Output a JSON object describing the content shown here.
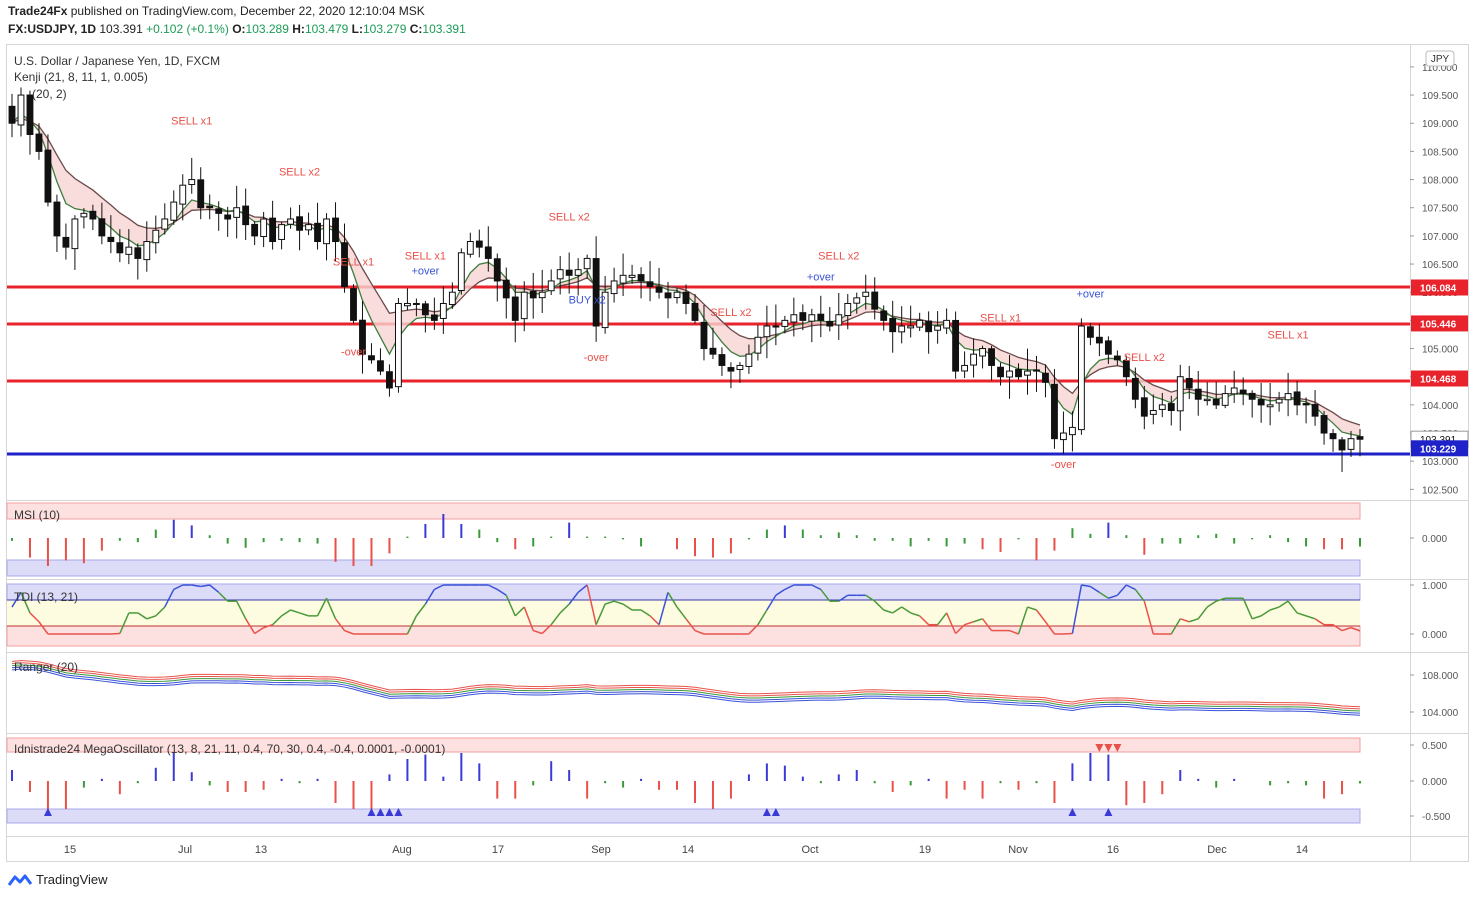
{
  "header": {
    "publisher": "Trade24Fx",
    "published_text": "published on TradingView.com, December 22, 2020 12:10:04 MSK",
    "symbol": "FX:USDJPY, 1D",
    "last": "103.391",
    "change": "+0.102 (+0.1%)",
    "o_label": "O:",
    "o": "103.289",
    "h_label": "H:",
    "h": "103.479",
    "l_label": "L:",
    "l": "103.279",
    "c_label": "C:",
    "c": "103.391"
  },
  "main_legend": {
    "name": "U.S. Dollar / Japanese Yen, 1D, FXCM",
    "kenji": "Kenji (21, 8, 11, 1, 0.005)",
    "bb": "(20, 2)"
  },
  "currency_badge": "JPY",
  "indicators": {
    "msi": "MSI (10)",
    "tdi": "TDI (13, 21)",
    "ranger": "Ranger (20)",
    "mega": "Idnistrade24 MegaOscillator (13, 8, 21, 11, 0.4, 70, 30, 0.4, -0.4, 0.0001, -0.0001)"
  },
  "price_axis": [
    "110.000",
    "109.500",
    "109.000",
    "108.500",
    "108.000",
    "107.500",
    "107.000",
    "106.500",
    "106.000",
    "105.500",
    "105.000",
    "104.500",
    "104.000",
    "103.500",
    "103.000",
    "102.500"
  ],
  "level_tags": [
    "106.084",
    "105.446",
    "104.468",
    "103.391",
    "103.229"
  ],
  "msi_axis": [
    "0.000"
  ],
  "tdi_axis": [
    "1.000",
    "0.000"
  ],
  "ranger_axis": [
    "108.000",
    "104.000"
  ],
  "mega_axis": [
    "0.500",
    "0.000",
    "-0.500"
  ],
  "x_axis": [
    "15",
    "Jul",
    "13",
    "Aug",
    "17",
    "Sep",
    "14",
    "Oct",
    "19",
    "Nov",
    "16",
    "Dec",
    "14"
  ],
  "signals": {
    "sell_x1": "SELL x1",
    "sell_x2": "SELL x2",
    "buy_x2": "BUY x2",
    "over_minus": "-over",
    "over_plus": "+over"
  },
  "footer": {
    "brand": "TradingView"
  },
  "colors": {
    "level_red": "#e8232b",
    "level_blue": "#1f22c8",
    "signal_red": "#e8504a",
    "signal_blue": "#3b52d6",
    "ohlc_green": "#1a9c55",
    "ranger_red": "#e8534a",
    "ranger_blue": "#3a52d8",
    "ranger_green": "#3a9a3a"
  },
  "chart_data": {
    "type": "candlestick",
    "symbol": "USDJPY",
    "timeframe": "1D",
    "ylim": [
      102.4,
      110.3
    ],
    "horizontal_levels": [
      {
        "value": 106.084,
        "color": "red"
      },
      {
        "value": 105.446,
        "color": "red"
      },
      {
        "value": 104.468,
        "color": "red"
      },
      {
        "value": 103.229,
        "color": "blue"
      }
    ],
    "last_price": 103.391,
    "closes": [
      109.0,
      109.5,
      108.8,
      108.5,
      107.6,
      107.0,
      106.8,
      107.3,
      107.4,
      107.3,
      107.0,
      106.9,
      106.7,
      106.8,
      106.6,
      106.9,
      107.1,
      107.3,
      107.6,
      107.9,
      108.0,
      107.5,
      107.5,
      107.4,
      107.3,
      107.5,
      107.2,
      107.0,
      107.3,
      106.9,
      107.2,
      107.3,
      107.1,
      107.2,
      106.9,
      107.3,
      106.9,
      106.1,
      105.5,
      104.9,
      104.8,
      104.6,
      104.3,
      105.8,
      105.8,
      105.8,
      105.6,
      105.5,
      105.8,
      106.0,
      106.7,
      106.9,
      106.8,
      106.6,
      106.2,
      105.9,
      105.5,
      106.0,
      105.9,
      106.0,
      106.2,
      106.4,
      106.3,
      106.4,
      106.6,
      105.4,
      106.0,
      106.2,
      106.3,
      106.3,
      106.2,
      106.1,
      106.0,
      105.9,
      106.0,
      105.8,
      105.5,
      105.0,
      104.9,
      104.7,
      104.6,
      104.7,
      104.9,
      105.2,
      105.4,
      105.4,
      105.5,
      105.6,
      105.5,
      105.6,
      105.5,
      105.4,
      105.6,
      105.8,
      105.9,
      106.0,
      105.7,
      105.5,
      105.3,
      105.4,
      105.4,
      105.5,
      105.3,
      105.4,
      105.5,
      104.6,
      104.7,
      104.9,
      105.0,
      104.7,
      104.5,
      104.6,
      104.5,
      104.6,
      104.6,
      104.4,
      103.4,
      103.5,
      103.6,
      105.4,
      105.2,
      105.1,
      104.9,
      104.8,
      104.5,
      104.1,
      103.8,
      103.9,
      104.0,
      103.9,
      104.5,
      104.3,
      104.1,
      104.1,
      104.0,
      104.2,
      104.3,
      104.2,
      104.1,
      104.0,
      104.0,
      104.1,
      104.2,
      104.0,
      104.0,
      103.8,
      103.5,
      103.4,
      103.2,
      103.4,
      103.39
    ]
  }
}
